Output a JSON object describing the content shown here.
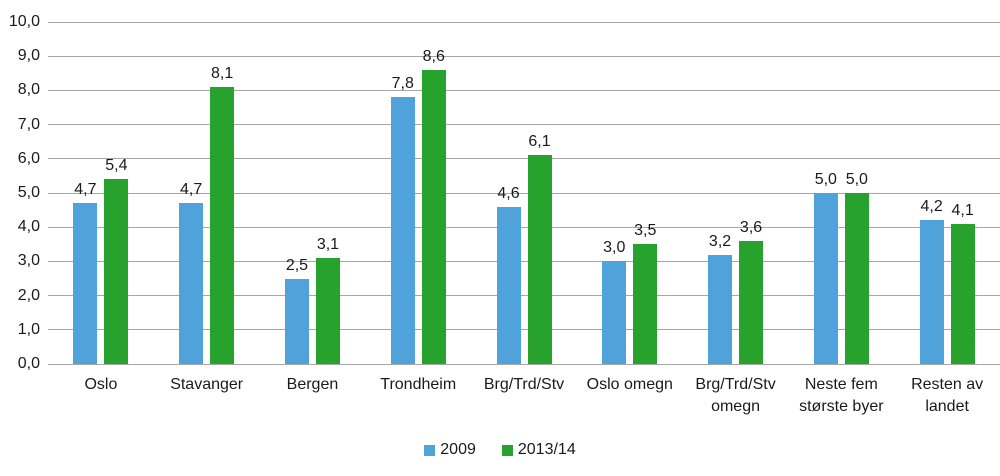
{
  "chart_data": {
    "type": "bar",
    "title": "",
    "xlabel": "",
    "ylabel": "",
    "categories": [
      "Oslo",
      "Stavanger",
      "Bergen",
      "Trondheim",
      "Brg/Trd/Stv",
      "Oslo omegn",
      "Brg/Trd/Stv\nomegn",
      "Neste fem\nstørste byer",
      "Resten av\nlandet"
    ],
    "series": [
      {
        "name": "2009",
        "color": "#4fa3da",
        "values": [
          4.7,
          4.7,
          2.5,
          7.8,
          4.6,
          3.0,
          3.2,
          5.0,
          4.2
        ]
      },
      {
        "name": "2013/14",
        "color": "#27a22c",
        "values": [
          5.4,
          8.1,
          3.1,
          8.6,
          6.1,
          3.5,
          3.6,
          5.0,
          4.1
        ]
      }
    ],
    "ylim": [
      0,
      10
    ],
    "y_ticks": [
      "0,0",
      "1,0",
      "2,0",
      "3,0",
      "4,0",
      "5,0",
      "6,0",
      "7,0",
      "8,0",
      "9,0",
      "10,0"
    ],
    "decimal_separator": ",",
    "grid": true,
    "gridline_color": "#a6a6a6",
    "text_color": "#1a1a1a",
    "legend_position": "bottom"
  }
}
